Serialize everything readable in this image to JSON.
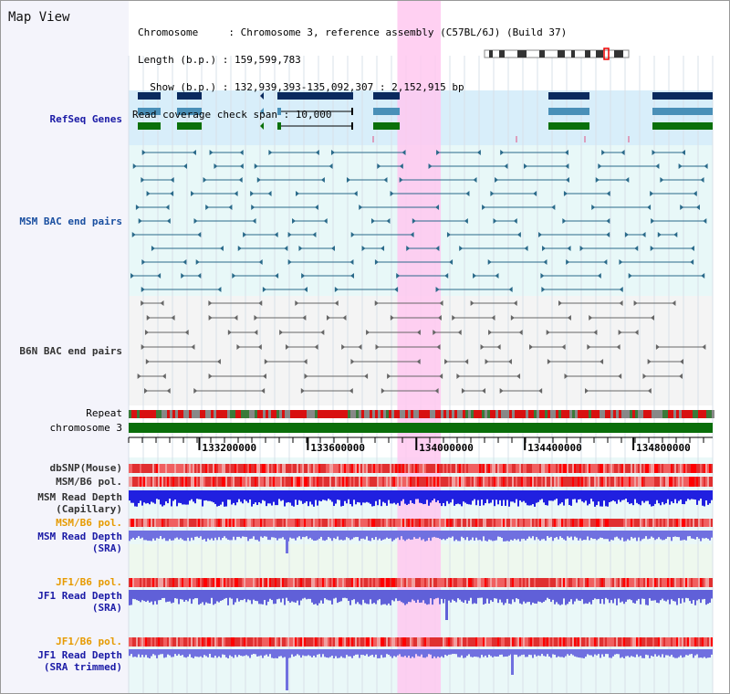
{
  "header": {
    "title": "Map View",
    "info_lines": [
      "Chromosome     : Chromosome 3, reference assembly (C57BL/6J) (Build 37)",
      "Length (b.p.) : 159,599,783",
      "  Show (b.p.) : 132,939,393-135,092,307 : 2,152,915 bp",
      "Read coverage check span : 10,000"
    ]
  },
  "tracks": {
    "refseq": {
      "label": "RefSeq Genes",
      "color": "#1a1aa6"
    },
    "msm_bac": {
      "label": "MSM BAC end pairs",
      "color": "#1a4fa0"
    },
    "b6n_bac": {
      "label": "B6N BAC end pairs",
      "color": "#333333"
    },
    "repeat": {
      "label": "Repeat",
      "color": "#000000"
    },
    "chromosome": {
      "label": "chromosome 3",
      "color": "#000000",
      "bar_color": "#0a6e0a"
    },
    "dbsnp": {
      "label": "dbSNP(Mouse)",
      "color": "#333333"
    },
    "msm_b6_pol_1": {
      "label": "MSM/B6 pol.",
      "color": "#333333"
    },
    "msm_depth_cap": {
      "line1": "MSM Read Depth",
      "line2": "(Capillary)",
      "color": "#333333"
    },
    "msm_b6_pol_2": {
      "label": "MSM/B6 pol.",
      "color": "#e69a00"
    },
    "msm_depth_sra": {
      "line1": "MSM Read Depth",
      "line2": "(SRA)",
      "color": "#1a1aa6"
    },
    "jf1_b6_pol_1": {
      "label": "JF1/B6 pol.",
      "color": "#e69a00"
    },
    "jf1_depth_sra": {
      "line1": "JF1 Read Depth",
      "line2": "(SRA)",
      "color": "#1a1aa6"
    },
    "jf1_b6_pol_2": {
      "label": "JF1/B6 pol.",
      "color": "#e69a00"
    },
    "jf1_depth_trim": {
      "line1": "JF1 Read Depth",
      "line2": "(SRA trimmed)",
      "color": "#1a1aa6"
    }
  },
  "ruler": {
    "ticks": [
      {
        "pos": 133200000,
        "label": "133200000"
      },
      {
        "pos": 133600000,
        "label": "133600000"
      },
      {
        "pos": 134000000,
        "label": "134000000"
      },
      {
        "pos": 134400000,
        "label": "134400000"
      },
      {
        "pos": 134800000,
        "label": "134800000"
      }
    ],
    "view_start": 132939393,
    "view_end": 135092307
  },
  "highlight": {
    "start": 133930000,
    "end": 134090000,
    "color": "#ffc8f0"
  }
}
